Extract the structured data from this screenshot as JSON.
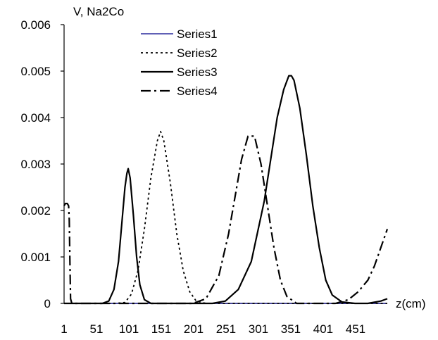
{
  "chart_data": {
    "type": "line",
    "title": "",
    "ylabel": "V, Na2Co",
    "xlabel": "z(cm)",
    "ylim": [
      0,
      0.006
    ],
    "y_ticks": [
      "0",
      "0.001",
      "0.002",
      "0.003",
      "0.004",
      "0.005",
      "0.006"
    ],
    "y_tick_values": [
      0,
      0.001,
      0.002,
      0.003,
      0.004,
      0.005,
      0.006
    ],
    "x_ticks": [
      "1",
      "51",
      "101",
      "151",
      "201",
      "251",
      "301",
      "351",
      "401",
      "451"
    ],
    "x_tick_values": [
      1,
      51,
      101,
      151,
      201,
      251,
      301,
      351,
      401,
      451
    ],
    "xlim": [
      1,
      500
    ],
    "grid": false,
    "legend_position": "top-center",
    "series": [
      {
        "name": "Series1",
        "color": "#00008b",
        "dash": "solid",
        "x": [
          1,
          500
        ],
        "y": [
          0,
          0
        ]
      },
      {
        "name": "Series2",
        "color": "#000000",
        "dash": "dotted",
        "x": [
          1,
          80,
          95,
          105,
          115,
          125,
          135,
          145,
          150,
          155,
          165,
          175,
          185,
          195,
          205,
          220,
          240,
          500
        ],
        "y": [
          0,
          0,
          2e-05,
          0.0002,
          0.0007,
          0.0016,
          0.0027,
          0.0035,
          0.0037,
          0.0035,
          0.0026,
          0.0015,
          0.0007,
          0.00025,
          5e-05,
          0,
          0,
          0
        ]
      },
      {
        "name": "Series3",
        "color": "#000000",
        "dash": "solid",
        "x": [
          1,
          60,
          70,
          78,
          85,
          90,
          95,
          98,
          100,
          103,
          108,
          113,
          118,
          125,
          135,
          230,
          250,
          270,
          290,
          310,
          320,
          330,
          340,
          348,
          352,
          356,
          365,
          375,
          385,
          395,
          405,
          415,
          430,
          450,
          470,
          490,
          500
        ],
        "y": [
          0,
          0,
          5e-05,
          0.0003,
          0.0009,
          0.0017,
          0.0025,
          0.0028,
          0.0029,
          0.0027,
          0.0019,
          0.001,
          0.0004,
          8e-05,
          0,
          0,
          5e-05,
          0.0003,
          0.0009,
          0.0022,
          0.0031,
          0.004,
          0.0046,
          0.0049,
          0.0049,
          0.0048,
          0.0042,
          0.0032,
          0.0021,
          0.0012,
          0.0005,
          0.00018,
          3e-05,
          0,
          0,
          5e-05,
          0.0001
        ]
      },
      {
        "name": "Series4",
        "color": "#000000",
        "dash": "dashdot",
        "x": [
          1,
          3,
          6,
          8,
          9,
          10,
          11,
          13,
          200,
          220,
          240,
          255,
          265,
          275,
          285,
          295,
          305,
          315,
          325,
          335,
          345,
          360,
          400,
          420,
          440,
          455,
          470,
          480,
          490,
          500
        ],
        "y": [
          0.0021,
          0.00215,
          0.00215,
          0.0021,
          0.0018,
          0.0009,
          0.0001,
          0,
          0,
          0.0001,
          0.0006,
          0.0015,
          0.0023,
          0.0031,
          0.0036,
          0.0036,
          0.003,
          0.0021,
          0.0012,
          0.0005,
          0.00015,
          0,
          0,
          0,
          8e-05,
          0.00025,
          0.0005,
          0.0008,
          0.0012,
          0.0016
        ]
      }
    ]
  }
}
